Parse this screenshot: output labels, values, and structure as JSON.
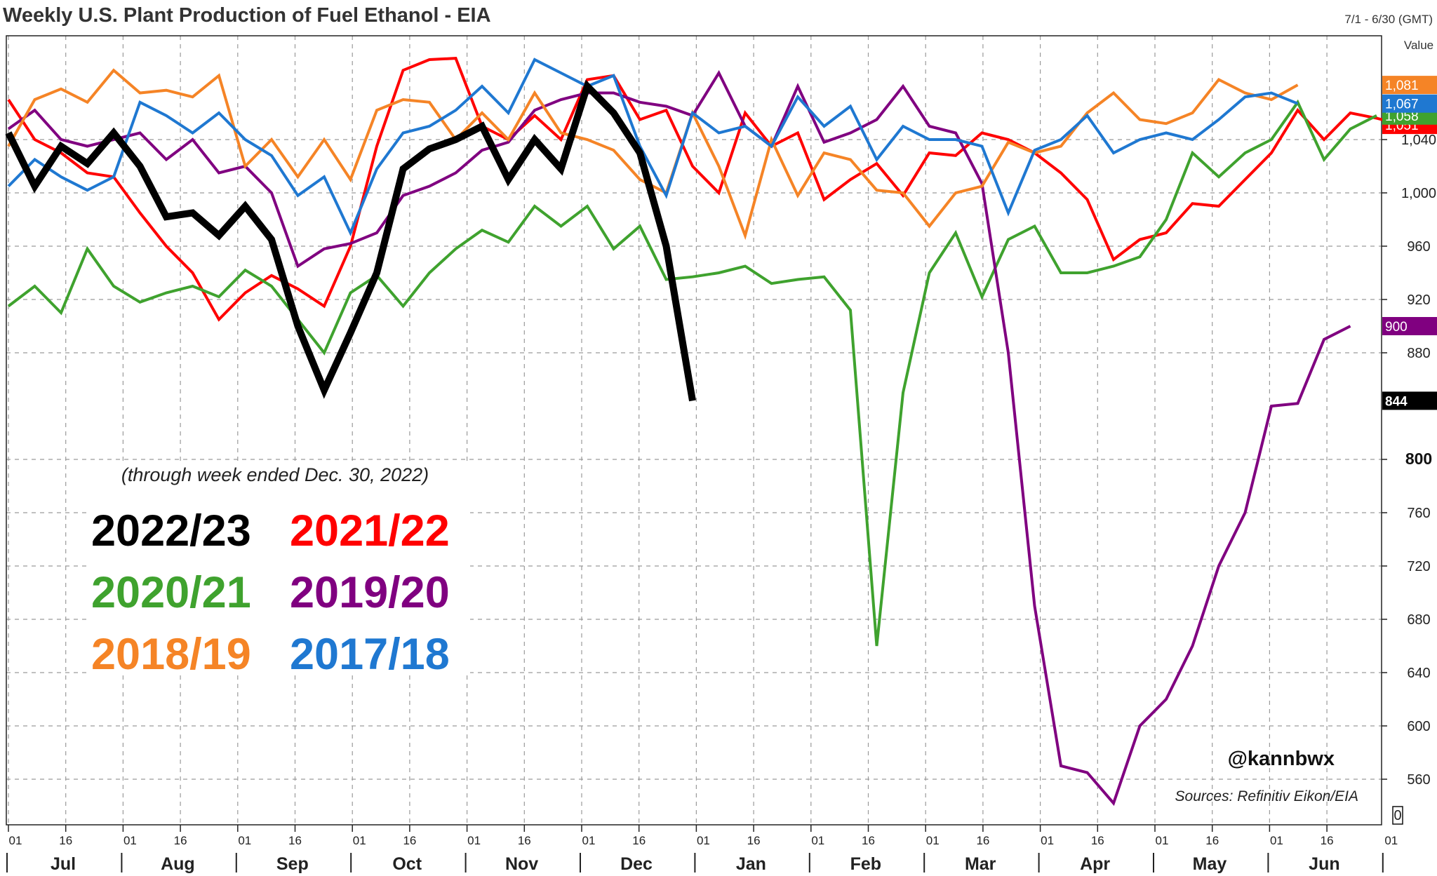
{
  "chart_data": {
    "type": "line",
    "title": "Weekly U.S. Plant Production of Fuel Ethanol - EIA",
    "date_range": "7/1 - 6/30 (GMT)",
    "value_label": "Value",
    "note": "(through week ended Dec. 30, 2022)",
    "handle": "@kannbwx",
    "source": "Sources: Refinitiv Eikon/EIA",
    "ylim": [
      520,
      1100
    ],
    "y_ticks": [
      {
        "v": 560,
        "label": "560"
      },
      {
        "v": 600,
        "label": "600"
      },
      {
        "v": 640,
        "label": "640"
      },
      {
        "v": 680,
        "label": "680"
      },
      {
        "v": 720,
        "label": "720"
      },
      {
        "v": 760,
        "label": "760"
      },
      {
        "v": 800,
        "label": "800"
      },
      {
        "v": 880,
        "label": "880"
      },
      {
        "v": 920,
        "label": "920"
      },
      {
        "v": 960,
        "label": "960"
      },
      {
        "v": 1000,
        "label": "1,000"
      },
      {
        "v": 1040,
        "label": "1,040"
      }
    ],
    "y_bold_ticks": [
      800
    ],
    "zero_label": "0",
    "months": [
      "Jul",
      "Aug",
      "Sep",
      "Oct",
      "Nov",
      "Dec",
      "Jan",
      "Feb",
      "Mar",
      "Apr",
      "May",
      "Jun"
    ],
    "day_labels": [
      "01",
      "16"
    ],
    "grid": true,
    "series": [
      {
        "name": "2022/23",
        "color": "#000000",
        "width": 10,
        "end_label": "844",
        "values": [
          1045,
          1005,
          1035,
          1022,
          1045,
          1020,
          982,
          985,
          968,
          990,
          965,
          900,
          852,
          895,
          940,
          1018,
          1033,
          1040,
          1050,
          1010,
          1040,
          1018,
          1080,
          1060,
          1030,
          960,
          844
        ]
      },
      {
        "name": "2021/22",
        "color": "#ff0000",
        "width": 4,
        "end_label": "1,051",
        "values": [
          1070,
          1040,
          1030,
          1015,
          1012,
          985,
          960,
          940,
          905,
          925,
          938,
          928,
          915,
          960,
          1035,
          1092,
          1100,
          1101,
          1050,
          1040,
          1058,
          1040,
          1085,
          1088,
          1055,
          1062,
          1020,
          1000,
          1060,
          1035,
          1045,
          995,
          1010,
          1022,
          998,
          1030,
          1028,
          1045,
          1040,
          1030,
          1015,
          995,
          950,
          965,
          970,
          992,
          990,
          1010,
          1030,
          1062,
          1040,
          1060,
          1056,
          1051
        ]
      },
      {
        "name": "2020/21",
        "color": "#3fa22e",
        "width": 4,
        "end_label": "1,058",
        "values": [
          915,
          930,
          910,
          958,
          930,
          918,
          925,
          930,
          922,
          942,
          930,
          905,
          880,
          925,
          938,
          915,
          940,
          958,
          972,
          963,
          990,
          975,
          990,
          958,
          975,
          935,
          937,
          940,
          945,
          932,
          935,
          937,
          912,
          660,
          850,
          940,
          970,
          922,
          965,
          975,
          940,
          940,
          945,
          952,
          980,
          1030,
          1012,
          1030,
          1040,
          1068,
          1025,
          1048,
          1058
        ]
      },
      {
        "name": "2019/20",
        "color": "#800080",
        "width": 4,
        "end_label": "900",
        "values": [
          1048,
          1062,
          1040,
          1035,
          1040,
          1045,
          1025,
          1040,
          1015,
          1020,
          1000,
          945,
          958,
          962,
          970,
          998,
          1005,
          1015,
          1032,
          1038,
          1062,
          1070,
          1075,
          1075,
          1068,
          1065,
          1058,
          1090,
          1050,
          1035,
          1080,
          1038,
          1045,
          1055,
          1080,
          1050,
          1045,
          1007,
          880,
          690,
          570,
          565,
          542,
          600,
          620,
          660,
          720,
          760,
          840,
          842,
          890,
          900
        ]
      },
      {
        "name": "2018/19",
        "color": "#f58426",
        "width": 4,
        "end_label": "1,081",
        "values": [
          1035,
          1070,
          1078,
          1068,
          1092,
          1075,
          1077,
          1072,
          1088,
          1020,
          1040,
          1012,
          1040,
          1010,
          1062,
          1070,
          1068,
          1040,
          1060,
          1040,
          1075,
          1045,
          1040,
          1032,
          1010,
          1000,
          1060,
          1020,
          968,
          1040,
          998,
          1030,
          1025,
          1002,
          1000,
          975,
          1000,
          1005,
          1038,
          1030,
          1035,
          1060,
          1075,
          1055,
          1052,
          1060,
          1085,
          1075,
          1070,
          1081
        ]
      },
      {
        "name": "2017/18",
        "color": "#1f78d1",
        "width": 4,
        "end_label": "1,067",
        "values": [
          1005,
          1025,
          1012,
          1002,
          1012,
          1068,
          1058,
          1045,
          1060,
          1040,
          1028,
          998,
          1012,
          970,
          1018,
          1045,
          1050,
          1062,
          1080,
          1060,
          1100,
          1090,
          1080,
          1088,
          1035,
          998,
          1060,
          1045,
          1050,
          1035,
          1072,
          1050,
          1065,
          1025,
          1050,
          1040,
          1040,
          1035,
          985,
          1032,
          1040,
          1058,
          1030,
          1040,
          1045,
          1040,
          1055,
          1072,
          1075,
          1067
        ]
      }
    ],
    "legend": [
      {
        "label": "2022/23",
        "color": "#000000"
      },
      {
        "label": "2021/22",
        "color": "#ff0000"
      },
      {
        "label": "2020/21",
        "color": "#3fa22e"
      },
      {
        "label": "2019/20",
        "color": "#800080"
      },
      {
        "label": "2018/19",
        "color": "#f58426"
      },
      {
        "label": "2017/18",
        "color": "#1f78d1"
      }
    ]
  }
}
